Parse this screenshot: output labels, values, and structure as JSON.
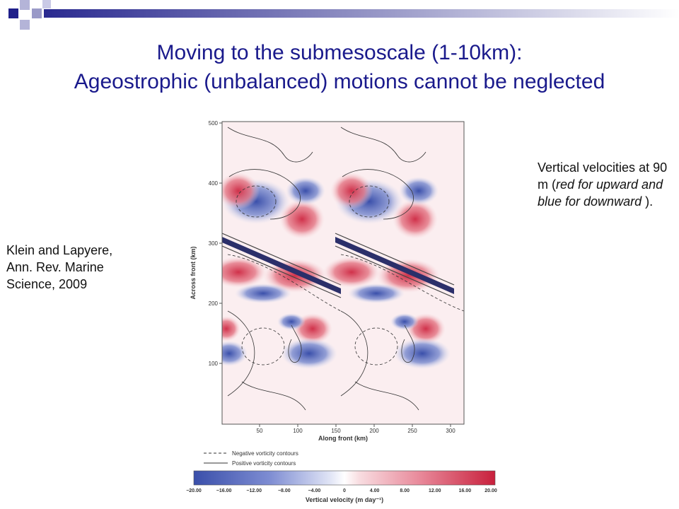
{
  "colors": {
    "title": "#1a1a8c",
    "deco_dark": "#1f1f8a",
    "deco_light": "#9a9ac8",
    "upward": "#d0314a",
    "downward": "#3a4faa"
  },
  "slide": {
    "title_line1": "Moving to the submesoscale (1-10km):",
    "title_line2": "Ageostrophic (unbalanced) motions cannot be neglected"
  },
  "citation": {
    "line1": "Klein and Lapyere,",
    "line2": "Ann. Rev. Marine",
    "line3": "Science, 2009"
  },
  "caption": {
    "line1": "Vertical velocities",
    "part2": "at 90 m (",
    "italic": "red for upward and blue for downward",
    "part3": " )."
  },
  "figure": {
    "ylabel": "Across front (km)",
    "xlabel": "Along front (km)",
    "yticks": [
      "500",
      "400",
      "300",
      "200",
      "100"
    ],
    "xticks": [
      "50",
      "100",
      "150",
      "200",
      "250",
      "300"
    ],
    "legend_negative": "Negative vorticity contours",
    "legend_positive": "Positive vorticity contours",
    "colorbar_ticks": [
      "−20.00",
      "−16.00",
      "−12.00",
      "−8.00",
      "−4.00",
      "0",
      "4.00",
      "8.00",
      "12.00",
      "16.00",
      "20.00"
    ],
    "colorbar_label": "Vertical velocity (m day⁻¹)"
  }
}
